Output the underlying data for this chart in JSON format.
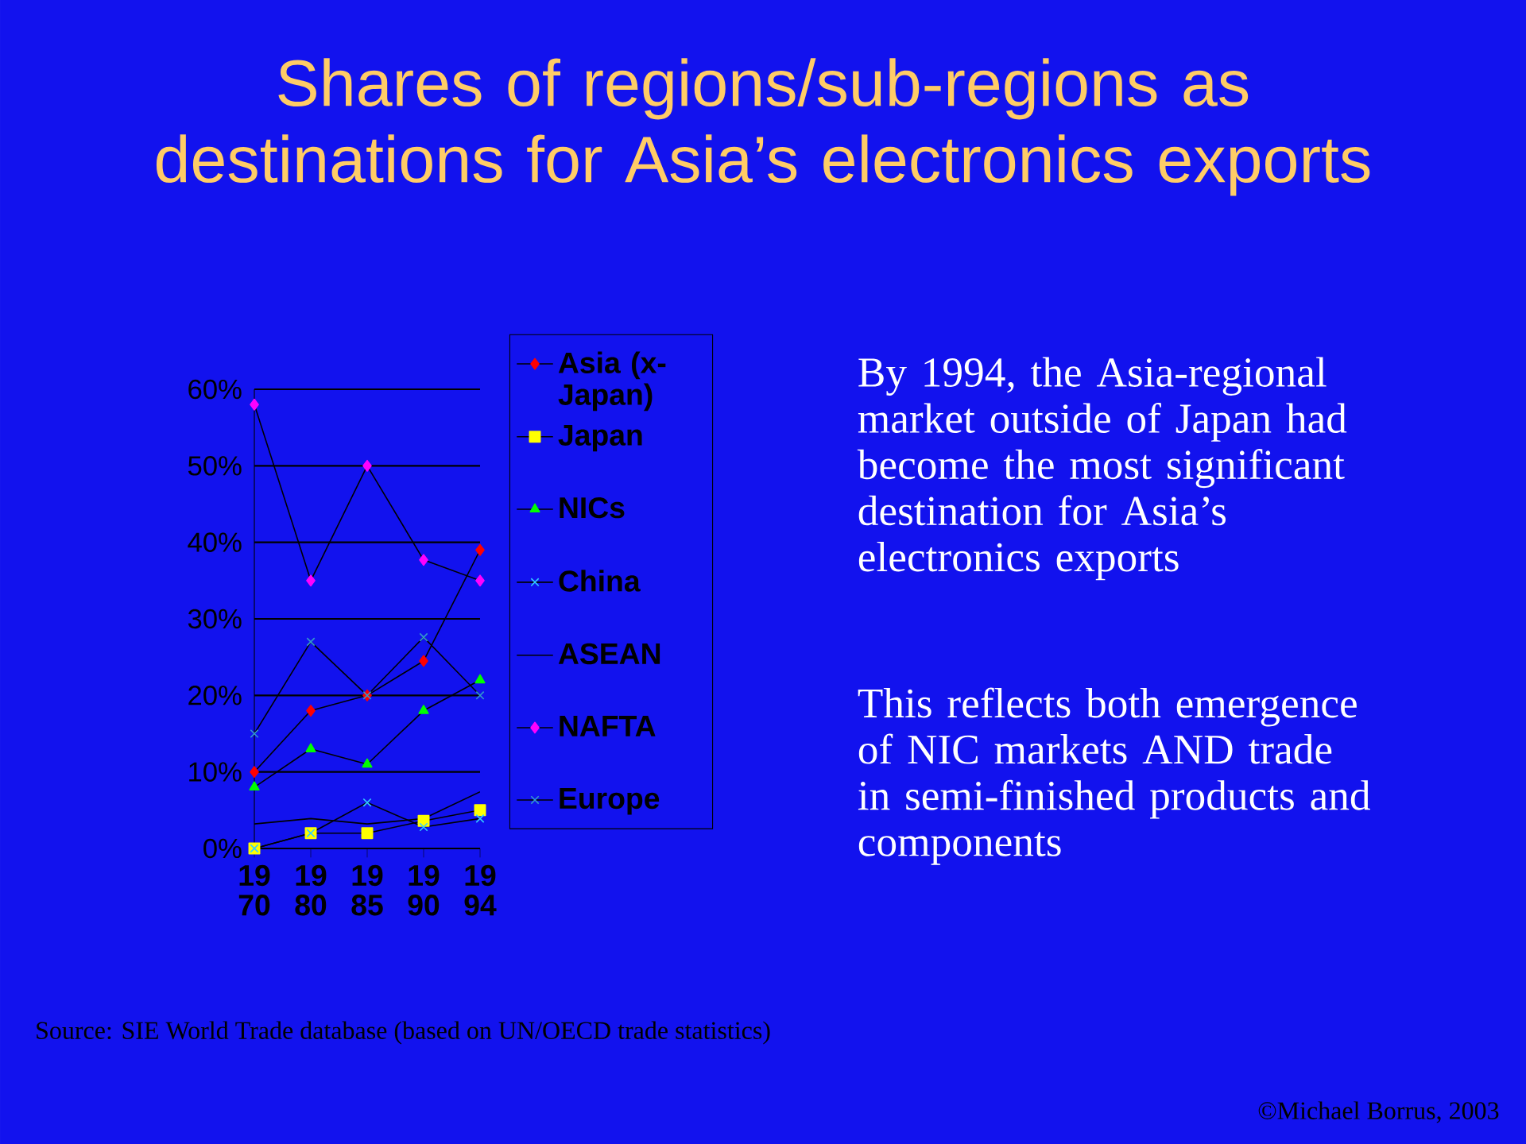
{
  "chart_data": {
    "type": "line",
    "title": "Shares of regions/sub-regions as destinations for Asia’s electronics exports",
    "categories": [
      "19 70",
      "19 80",
      "19 85",
      "19 90",
      "19 94"
    ],
    "series": [
      {
        "name": "Asia (x-Japan)",
        "color": "#ff0000",
        "marker": "diamond",
        "values": [
          10,
          18,
          20,
          24.5,
          39
        ]
      },
      {
        "name": "Japan",
        "color": "#ffff00",
        "marker": "square",
        "values": [
          0,
          2,
          2,
          3.6,
          5
        ]
      },
      {
        "name": "NICs",
        "color": "#00ff00",
        "marker": "triangle",
        "values": [
          8,
          13,
          11,
          18,
          22
        ]
      },
      {
        "name": "China",
        "color": "#33ccff",
        "marker": "cross",
        "values": [
          0,
          2,
          6,
          2.8,
          3.9
        ]
      },
      {
        "name": "ASEAN",
        "color": "#000000",
        "marker": "none",
        "values": [
          3.2,
          3.9,
          3.2,
          3.9,
          7.4
        ]
      },
      {
        "name": "NAFTA",
        "color": "#ff00ff",
        "marker": "diamond",
        "values": [
          58,
          35,
          50,
          37.7,
          35
        ]
      },
      {
        "name": "Europe",
        "color": "#3399cc",
        "marker": "cross",
        "values": [
          15,
          27,
          20,
          27.6,
          20
        ]
      }
    ],
    "ylim": [
      0,
      60
    ],
    "yticks": [
      {
        "value": 0,
        "label": "0%"
      },
      {
        "value": 10,
        "label": "10%"
      },
      {
        "value": 20,
        "label": "20%"
      },
      {
        "value": 30,
        "label": "30%"
      },
      {
        "value": 40,
        "label": "40%"
      },
      {
        "value": 50,
        "label": "50%"
      },
      {
        "value": 60,
        "label": "60%"
      }
    ],
    "grid": "y",
    "legend": "right",
    "annotations": [
      "By 1994, the Asia-regional market outside of Japan had become the most significant destination for Asia’s electronics exports",
      "This reflects both emergence of NIC markets AND trade in semi-finished products and components",
      "Source: SIE World Trade database (based on UN/OECD trade statistics)",
      "©Michael Borrus, 2003"
    ]
  }
}
